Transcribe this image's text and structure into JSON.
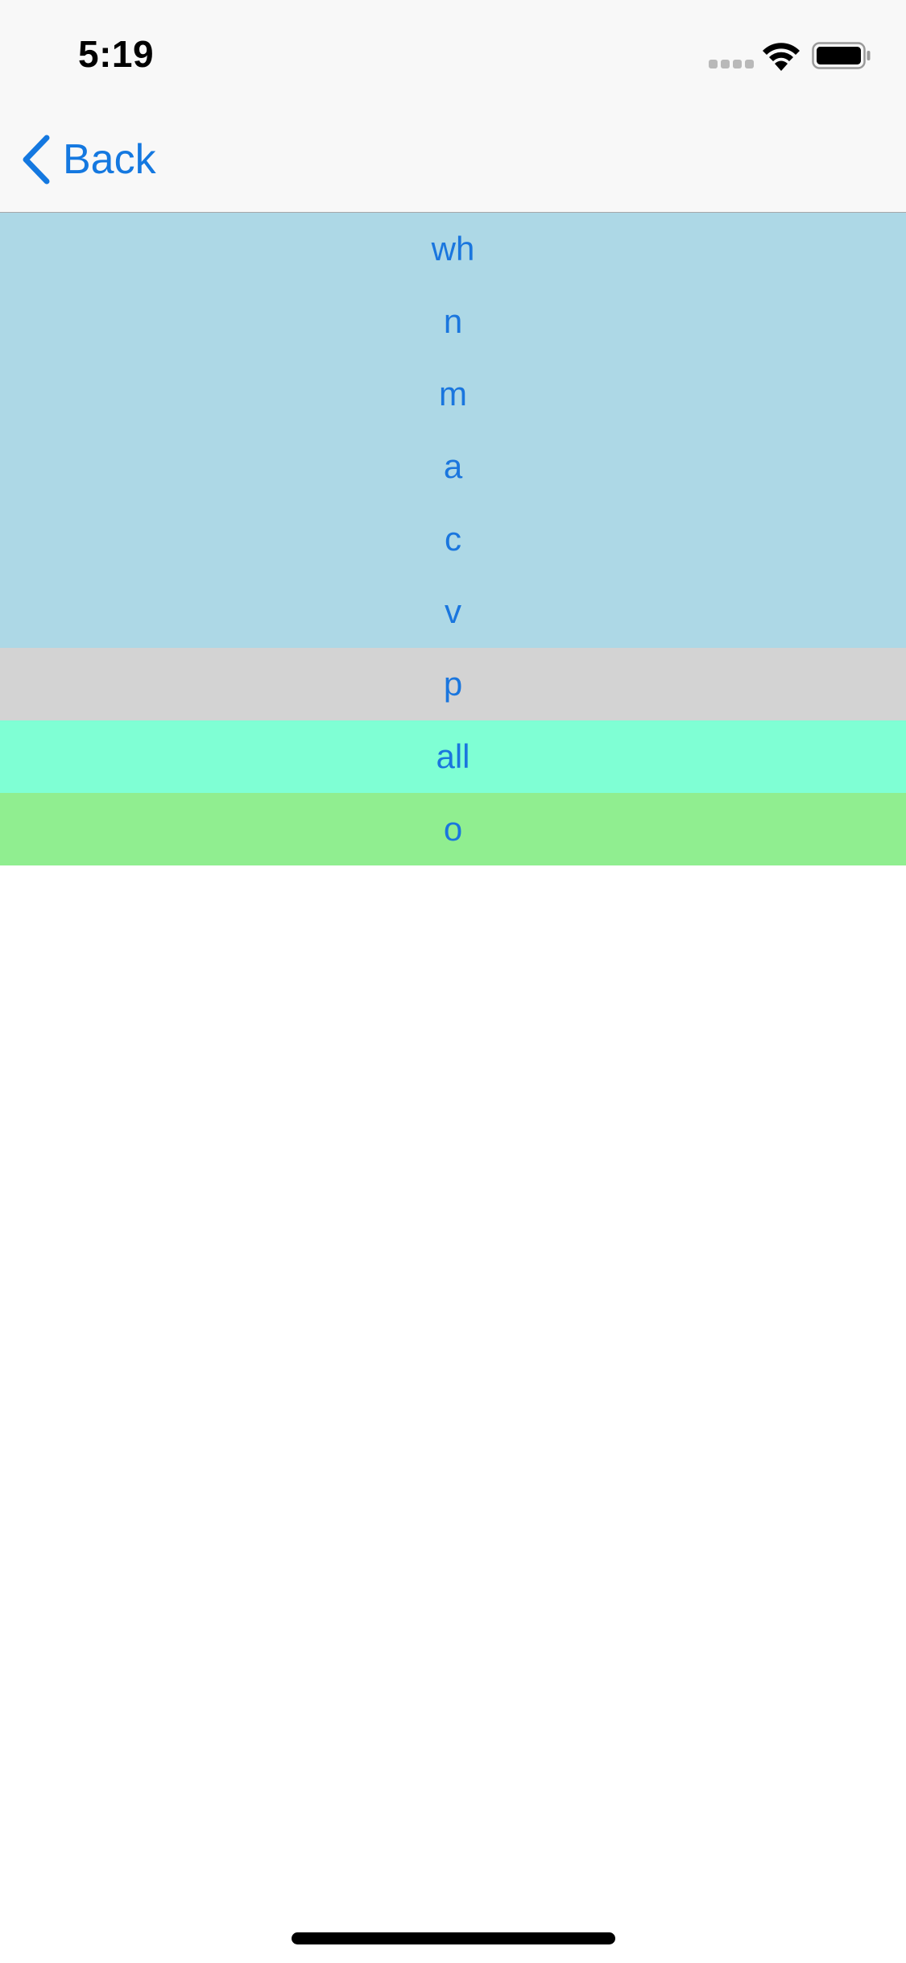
{
  "status_bar": {
    "time": "5:19",
    "signal_icon": "cellular-dots-icon",
    "wifi_icon": "wifi-icon",
    "battery_icon": "battery-icon"
  },
  "nav": {
    "back_label": "Back",
    "back_icon": "chevron-left-icon",
    "accent_color": "#1478e0"
  },
  "list": {
    "items": [
      {
        "label": "wh",
        "color": "#add8e6"
      },
      {
        "label": "n",
        "color": "#add8e6"
      },
      {
        "label": "m",
        "color": "#add8e6"
      },
      {
        "label": "a",
        "color": "#add8e6"
      },
      {
        "label": "c",
        "color": "#add8e6"
      },
      {
        "label": "v",
        "color": "#add8e6"
      },
      {
        "label": "p",
        "color": "#d3d3d3"
      },
      {
        "label": "all",
        "color": "#7fffd4"
      },
      {
        "label": "o",
        "color": "#90ee90"
      }
    ]
  }
}
